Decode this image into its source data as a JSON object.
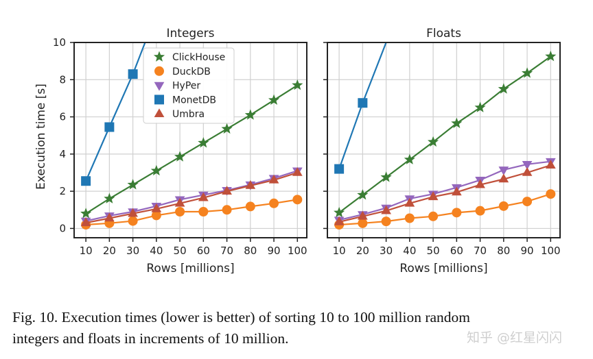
{
  "chart_data": [
    {
      "type": "line",
      "title": "Integers",
      "xlabel": "Rows [millions]",
      "ylabel": "Execution time [s]",
      "categories": [
        10,
        20,
        30,
        40,
        50,
        60,
        70,
        80,
        90,
        100
      ],
      "ylim": [
        0,
        10
      ],
      "yticks": [
        0,
        2,
        4,
        6,
        8,
        10
      ],
      "grid": true,
      "legend": "upper-center",
      "series": [
        {
          "name": "ClickHouse",
          "color": "#3a7d34",
          "marker": "star",
          "x": [
            10,
            20,
            30,
            40,
            50,
            60,
            70,
            80,
            90,
            100
          ],
          "values": [
            0.8,
            1.6,
            2.35,
            3.1,
            3.85,
            4.6,
            5.35,
            6.1,
            6.9,
            7.7
          ]
        },
        {
          "name": "DuckDB",
          "color": "#f5821f",
          "marker": "circle",
          "x": [
            10,
            20,
            30,
            40,
            50,
            60,
            70,
            80,
            90,
            100
          ],
          "values": [
            0.2,
            0.28,
            0.4,
            0.7,
            0.9,
            0.9,
            1.0,
            1.18,
            1.35,
            1.55
          ]
        },
        {
          "name": "HyPer",
          "color": "#9467bd",
          "marker": "triangle-down",
          "x": [
            10,
            20,
            30,
            40,
            50,
            60,
            70,
            80,
            90,
            100
          ],
          "values": [
            0.4,
            0.68,
            0.9,
            1.2,
            1.55,
            1.8,
            2.05,
            2.35,
            2.7,
            3.1
          ]
        },
        {
          "name": "MonetDB",
          "color": "#1f77b4",
          "marker": "square",
          "x": [
            10,
            20,
            30,
            35.2
          ],
          "values": [
            2.55,
            5.45,
            8.3,
            10.0
          ],
          "markers": [
            true,
            true,
            true,
            false
          ]
        },
        {
          "name": "Umbra",
          "color": "#c0503a",
          "marker": "triangle-up",
          "x": [
            10,
            20,
            30,
            40,
            50,
            60,
            70,
            80,
            90,
            100
          ],
          "values": [
            0.3,
            0.55,
            0.8,
            1.05,
            1.35,
            1.65,
            2.0,
            2.3,
            2.6,
            3.0
          ]
        }
      ]
    },
    {
      "type": "line",
      "title": "Floats",
      "xlabel": "Rows [millions]",
      "ylabel": "",
      "categories": [
        10,
        20,
        30,
        40,
        50,
        60,
        70,
        80,
        90,
        100
      ],
      "ylim": [
        0,
        10
      ],
      "grid": true,
      "series": [
        {
          "name": "ClickHouse",
          "color": "#3a7d34",
          "marker": "star",
          "x": [
            10,
            20,
            30,
            40,
            50,
            60,
            70,
            80,
            90,
            100
          ],
          "values": [
            0.85,
            1.8,
            2.75,
            3.7,
            4.65,
            5.65,
            6.5,
            7.5,
            8.35,
            9.25
          ]
        },
        {
          "name": "DuckDB",
          "color": "#f5821f",
          "marker": "circle",
          "x": [
            10,
            20,
            30,
            40,
            50,
            60,
            70,
            80,
            90,
            100
          ],
          "values": [
            0.2,
            0.28,
            0.38,
            0.55,
            0.65,
            0.85,
            0.95,
            1.2,
            1.45,
            1.85
          ]
        },
        {
          "name": "HyPer",
          "color": "#9467bd",
          "marker": "triangle-down",
          "x": [
            10,
            20,
            30,
            40,
            50,
            60,
            70,
            80,
            90,
            100
          ],
          "values": [
            0.45,
            0.75,
            1.1,
            1.6,
            1.85,
            2.2,
            2.6,
            3.15,
            3.45,
            3.6
          ]
        },
        {
          "name": "MonetDB",
          "color": "#1f77b4",
          "marker": "square",
          "x": [
            10,
            20,
            30
          ],
          "values": [
            3.2,
            6.75,
            10.0
          ],
          "markers": [
            true,
            true,
            false
          ]
        },
        {
          "name": "Umbra",
          "color": "#c0503a",
          "marker": "triangle-up",
          "x": [
            10,
            20,
            30,
            40,
            50,
            60,
            70,
            80,
            90,
            100
          ],
          "values": [
            0.35,
            0.65,
            0.95,
            1.35,
            1.7,
            1.95,
            2.35,
            2.65,
            3.0,
            3.4
          ]
        }
      ]
    }
  ],
  "caption": {
    "line1": "Fig. 10.  Execution times (lower is better) of sorting 10 to 100 million random",
    "line2": "integers and floats in increments of 10 million."
  },
  "watermark": "知乎 @红星闪闪"
}
